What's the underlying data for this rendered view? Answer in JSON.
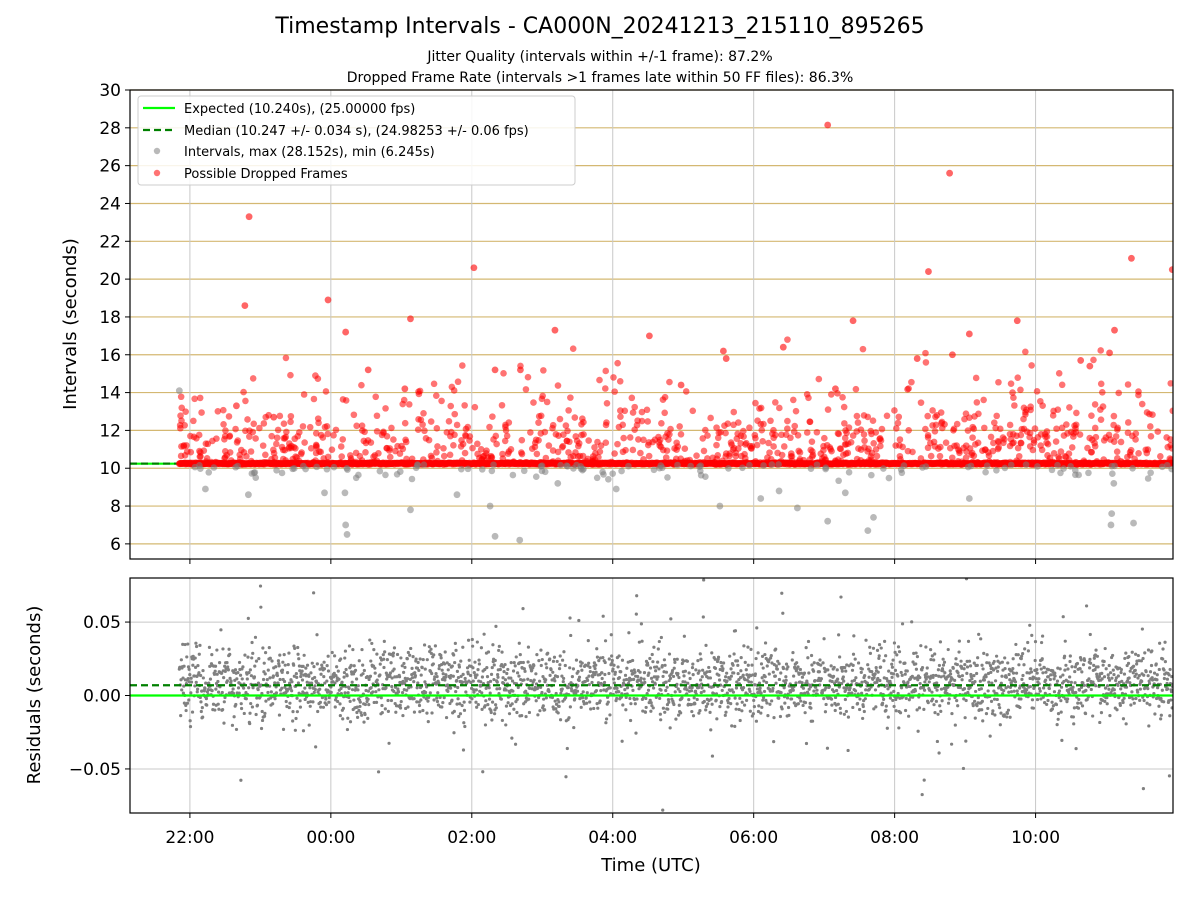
{
  "header": {
    "title": "Timestamp Intervals - CA000N_20241213_215110_895265",
    "subtitle_1": "Jitter Quality (intervals within +/-1 frame): 87.2%",
    "subtitle_2": "Dropped Frame Rate (intervals >1 frames late within 50 FF files): 86.3%"
  },
  "chart_data": [
    {
      "type": "scatter",
      "panel": "intervals",
      "ylabel": "Intervals (seconds)",
      "xlabel": "",
      "x_units": "hours (UTC), starting 2024-12-13 21:51; values past 24 wrap to next day",
      "xlim": [
        21.15,
        35.95
      ],
      "ylim": [
        5.2,
        30
      ],
      "yticks": [
        6,
        8,
        10,
        12,
        14,
        16,
        18,
        20,
        22,
        24,
        26,
        28,
        30
      ],
      "xticks": [
        "22:00",
        "00:00",
        "02:00",
        "04:00",
        "06:00",
        "08:00",
        "10:00"
      ],
      "grid": true,
      "legend_position": "top-left",
      "legend": [
        "Expected (10.240s), (25.00000 fps)",
        "Median (10.247 +/- 0.034 s), (24.98253 +/- 0.06 fps)",
        "Intervals, max (28.152s), min (6.245s)",
        "Possible Dropped Frames"
      ],
      "expected_line": 10.24,
      "median_line": 10.247,
      "baseline_band": [
        10.18,
        10.32
      ],
      "highlight_points": [
        {
          "x": 22.84,
          "y": 23.3
        },
        {
          "x": 22.78,
          "y": 18.6
        },
        {
          "x": 23.96,
          "y": 18.9
        },
        {
          "x": 24.21,
          "y": 17.2
        },
        {
          "x": 25.13,
          "y": 17.9
        },
        {
          "x": 26.03,
          "y": 20.6
        },
        {
          "x": 27.18,
          "y": 17.3
        },
        {
          "x": 28.52,
          "y": 17.0
        },
        {
          "x": 29.57,
          "y": 16.2
        },
        {
          "x": 31.05,
          "y": 28.15
        },
        {
          "x": 31.41,
          "y": 17.8
        },
        {
          "x": 32.48,
          "y": 20.4
        },
        {
          "x": 32.78,
          "y": 25.6
        },
        {
          "x": 33.06,
          "y": 17.1
        },
        {
          "x": 33.74,
          "y": 17.8
        },
        {
          "x": 35.12,
          "y": 17.3
        },
        {
          "x": 35.36,
          "y": 21.1
        },
        {
          "x": 35.94,
          "y": 20.5
        },
        {
          "x": 22.66,
          "y": 13.3
        },
        {
          "x": 23.19,
          "y": 12.7
        },
        {
          "x": 24.53,
          "y": 15.2
        },
        {
          "x": 25.05,
          "y": 14.2
        },
        {
          "x": 26.33,
          "y": 15.2
        },
        {
          "x": 26.69,
          "y": 15.2
        },
        {
          "x": 28.97,
          "y": 14.4
        },
        {
          "x": 29.61,
          "y": 15.8
        },
        {
          "x": 30.42,
          "y": 16.4
        },
        {
          "x": 31.16,
          "y": 14.2
        },
        {
          "x": 32.32,
          "y": 15.8
        },
        {
          "x": 32.82,
          "y": 16.0
        },
        {
          "x": 34.64,
          "y": 15.7
        },
        {
          "x": 35.05,
          "y": 16.1
        },
        {
          "x": 34.77,
          "y": 15.4
        }
      ],
      "low_points": [
        {
          "x": 21.85,
          "y": 14.1
        },
        {
          "x": 22.22,
          "y": 8.9
        },
        {
          "x": 22.83,
          "y": 8.6
        },
        {
          "x": 23.91,
          "y": 8.7
        },
        {
          "x": 24.2,
          "y": 8.7
        },
        {
          "x": 24.21,
          "y": 7.0
        },
        {
          "x": 24.23,
          "y": 6.5
        },
        {
          "x": 25.13,
          "y": 7.8
        },
        {
          "x": 25.79,
          "y": 8.6
        },
        {
          "x": 26.26,
          "y": 8.0
        },
        {
          "x": 26.33,
          "y": 6.4
        },
        {
          "x": 26.68,
          "y": 6.2
        },
        {
          "x": 27.22,
          "y": 9.2
        },
        {
          "x": 28.05,
          "y": 8.9
        },
        {
          "x": 29.52,
          "y": 8.0
        },
        {
          "x": 30.1,
          "y": 8.4
        },
        {
          "x": 30.36,
          "y": 8.8
        },
        {
          "x": 30.62,
          "y": 7.9
        },
        {
          "x": 31.05,
          "y": 7.2
        },
        {
          "x": 31.3,
          "y": 8.7
        },
        {
          "x": 31.62,
          "y": 6.7
        },
        {
          "x": 31.7,
          "y": 7.4
        },
        {
          "x": 33.06,
          "y": 8.4
        },
        {
          "x": 35.08,
          "y": 7.6
        },
        {
          "x": 35.07,
          "y": 7.0
        },
        {
          "x": 35.11,
          "y": 9.2
        },
        {
          "x": 35.39,
          "y": 7.1
        }
      ]
    },
    {
      "type": "scatter",
      "panel": "residuals",
      "ylabel": "Residuals (seconds)",
      "xlabel": "Time (UTC)",
      "xlim": [
        21.15,
        35.95
      ],
      "ylim": [
        -0.08,
        0.08
      ],
      "yticks": [
        0.05,
        0.0,
        -0.05
      ],
      "ytick_labels": [
        "0.05",
        "0.00",
        "−0.05"
      ],
      "xticks": [
        "22:00",
        "00:00",
        "02:00",
        "04:00",
        "06:00",
        "08:00",
        "10:00"
      ],
      "grid": true,
      "expected_line": 0.0,
      "median_line": 0.007,
      "cluster_center": 0.008,
      "cluster_spread": 0.012
    }
  ],
  "colors": {
    "expected": "#00ff00",
    "median": "#008000",
    "intervals": "#808080",
    "dropped": "#ff0000",
    "hgrid": "#d4b872",
    "vgrid": "#c8c8c8"
  }
}
